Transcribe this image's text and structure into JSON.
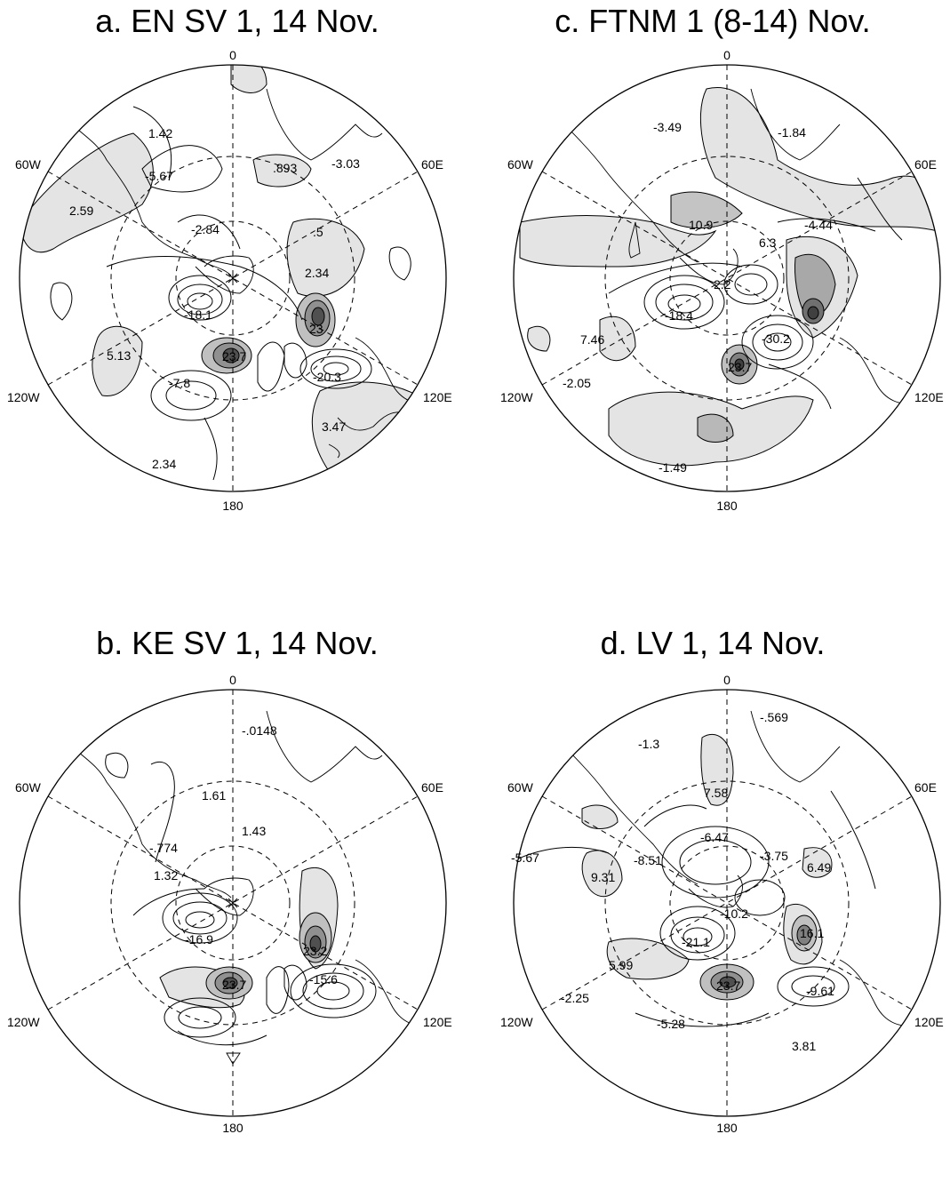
{
  "panels": [
    {
      "id": "a",
      "title": "a.  EN SV 1, 14 Nov.",
      "longitude_labels": {
        "top": "0",
        "bottom": "180",
        "upper_left": "60W",
        "upper_right": "60E",
        "lower_left": "120W",
        "lower_right": "120E"
      },
      "contour_labels": [
        "1.42",
        "-5.67",
        "2.59",
        "-2.84",
        ".893",
        "-3.03",
        ".5",
        "2.34",
        "-18.1",
        "23",
        "5.13",
        "23.7",
        "-7.8",
        "-20.3",
        "3.47",
        "2.34"
      ]
    },
    {
      "id": "c",
      "title": "c.  FTNM 1 (8-14) Nov.",
      "longitude_labels": {
        "top": "0",
        "bottom": "180",
        "upper_left": "60W",
        "upper_right": "60E",
        "lower_left": "120W",
        "lower_right": "120E"
      },
      "contour_labels": [
        "-3.49",
        "-1.84",
        "10.9",
        "6.3",
        "-4.44",
        "2.2",
        "-18.4",
        "7.46",
        "-30.2",
        "23.7",
        "-2.05",
        "-1.49"
      ]
    },
    {
      "id": "b",
      "title": "b.  KE SV 1, 14 Nov.",
      "longitude_labels": {
        "top": "0",
        "bottom": "180",
        "upper_left": "60W",
        "upper_right": "60E",
        "lower_left": "120W",
        "lower_right": "120E"
      },
      "contour_labels": [
        "-.0148",
        "1.61",
        "1.43",
        "-.774",
        "1.32",
        "-16.9",
        "23.2",
        "23.7",
        "-15.6"
      ]
    },
    {
      "id": "d",
      "title": "d.  LV 1, 14 Nov.",
      "longitude_labels": {
        "top": "0",
        "bottom": "180",
        "upper_left": "60W",
        "upper_right": "60E",
        "lower_left": "120W",
        "lower_right": "120E"
      },
      "contour_labels": [
        "-.569",
        "-1.3",
        "7.58",
        "-5.67",
        "-8.51",
        "-6.47",
        "-3.75",
        "6.49",
        "9.31",
        "-10.2",
        "-21.1",
        "16.1",
        "5.99",
        "23.7",
        "-9.61",
        "-2.25",
        "-5.28",
        "3.81"
      ]
    }
  ]
}
